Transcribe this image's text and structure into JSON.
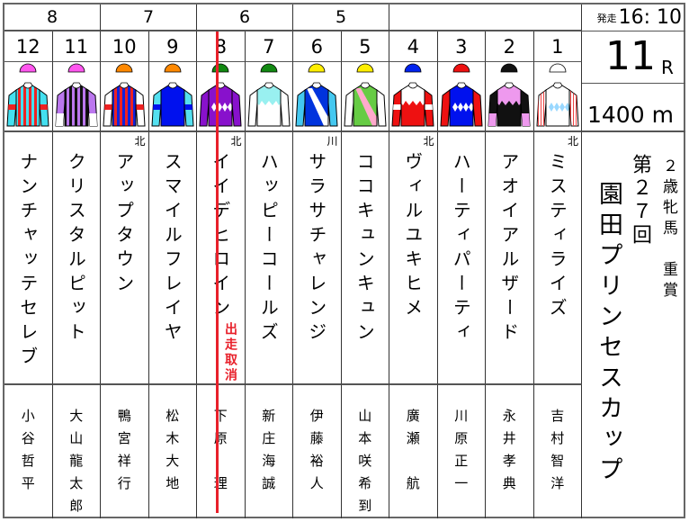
{
  "race": {
    "start_label": "発走",
    "start_time": "16: 10",
    "race_number": "11",
    "race_unit": "R",
    "distance": "1400 m",
    "category": "２歳牝馬　重賞",
    "edition": "第２７回",
    "title": "園田プリンセスカップ"
  },
  "frames": [
    {
      "label": "8",
      "span": 2
    },
    {
      "label": "7",
      "span": 2
    },
    {
      "label": "6",
      "span": 2
    },
    {
      "label": "5",
      "span": 2
    },
    {
      "label": "",
      "span": 4
    }
  ],
  "horses": [
    {
      "num": "12",
      "name": "ナンチャッテセレブ",
      "jockey": "小谷哲平",
      "aff": "",
      "silk": {
        "cap": "#ff55ee",
        "body": "#44e0f0",
        "sleeve": "#44e0f0",
        "pattern": "stripes",
        "pcolor": "#ee2222",
        "sleevePattern": "band",
        "spcolor": "#ee2222"
      }
    },
    {
      "num": "11",
      "name": "クリスタルピット",
      "jockey": "大山龍太郎",
      "aff": "",
      "silk": {
        "cap": "#ff55ee",
        "body": "#111111",
        "sleeve": "#bb77ee",
        "pattern": "stripes",
        "pcolor": "#bb77ee",
        "sleevePattern": "cuff",
        "spcolor": "#ffffff"
      }
    },
    {
      "num": "10",
      "name": "アップタウン",
      "jockey": "鴨宮祥行",
      "aff": "北",
      "silk": {
        "cap": "#ff8800",
        "body": "#1122dd",
        "sleeve": "#ffffff",
        "pattern": "stripes",
        "pcolor": "#ee2222",
        "sleevePattern": "band",
        "spcolor": "#ee2222"
      }
    },
    {
      "num": "9",
      "name": "スマイルフレイヤ",
      "jockey": "松木大地",
      "aff": "",
      "silk": {
        "cap": "#ff8800",
        "body": "#0011ee",
        "sleeve": "#55e0f0",
        "pattern": "none",
        "pcolor": "",
        "sleevePattern": "band",
        "spcolor": "#0011ee"
      }
    },
    {
      "num": "8",
      "name": "イイデヒロイン",
      "jockey": "下原　理",
      "aff": "北",
      "scratched": true,
      "silk": {
        "cap": "#118811",
        "body": "#8811cc",
        "sleeve": "#8811cc",
        "pattern": "diamonds",
        "pcolor": "#ffffff",
        "sleevePattern": "none",
        "spcolor": ""
      }
    },
    {
      "num": "7",
      "name": "ハッピーコールズ",
      "jockey": "新庄海誠",
      "aff": "",
      "silk": {
        "cap": "#118811",
        "body": "#ffffff",
        "sleeve": "#ffffff",
        "pattern": "yoke",
        "pcolor": "#99f0f0",
        "sleevePattern": "none",
        "spcolor": ""
      }
    },
    {
      "num": "6",
      "name": "サラサチャレンジ",
      "jockey": "伊藤裕人",
      "aff": "川",
      "silk": {
        "cap": "#ffee00",
        "body": "#0033dd",
        "sleeve": "#44c8f0",
        "pattern": "sash",
        "pcolor": "#ffffff",
        "sleevePattern": "none",
        "spcolor": ""
      }
    },
    {
      "num": "5",
      "name": "ココキュンキュン",
      "jockey": "山本咲希到",
      "aff": "",
      "silk": {
        "cap": "#ffee00",
        "body": "#66cc44",
        "sleeve": "#ffffff",
        "pattern": "sash",
        "pcolor": "#ffaacc",
        "sleevePattern": "none",
        "spcolor": ""
      }
    },
    {
      "num": "4",
      "name": "ヴィルユキヒメ",
      "jockey": "廣瀬　航",
      "aff": "北",
      "silk": {
        "cap": "#0022ee",
        "body": "#ee1111",
        "sleeve": "#ee1111",
        "pattern": "yoke",
        "pcolor": "#ffffff",
        "sleevePattern": "band",
        "spcolor": "#ffffff"
      }
    },
    {
      "num": "3",
      "name": "ハーティパーティ",
      "jockey": "川原正一",
      "aff": "",
      "silk": {
        "cap": "#ee1111",
        "body": "#0011ee",
        "sleeve": "#ee1111",
        "pattern": "diamonds",
        "pcolor": "#ffffff",
        "sleevePattern": "none",
        "spcolor": ""
      }
    },
    {
      "num": "2",
      "name": "アオイアルザード",
      "jockey": "永井孝典",
      "aff": "",
      "silk": {
        "cap": "#111111",
        "body": "#111111",
        "sleeve": "#111111",
        "pattern": "yoke",
        "pcolor": "#ee99ee",
        "sleevePattern": "cuff",
        "spcolor": "#ee99ee"
      }
    },
    {
      "num": "1",
      "name": "ミスティライズ",
      "jockey": "吉村智洋",
      "aff": "北",
      "silk": {
        "cap": "#ffffff",
        "body": "#ffffff",
        "sleeve": "#ffffff",
        "pattern": "diamonds",
        "pcolor": "#99d8ff",
        "sleevePattern": "stripes",
        "spcolor": "#ee4444"
      }
    }
  ],
  "scratch_label": "出走取消",
  "colors": {
    "scratch": "#e8202a",
    "border": "#555555"
  }
}
